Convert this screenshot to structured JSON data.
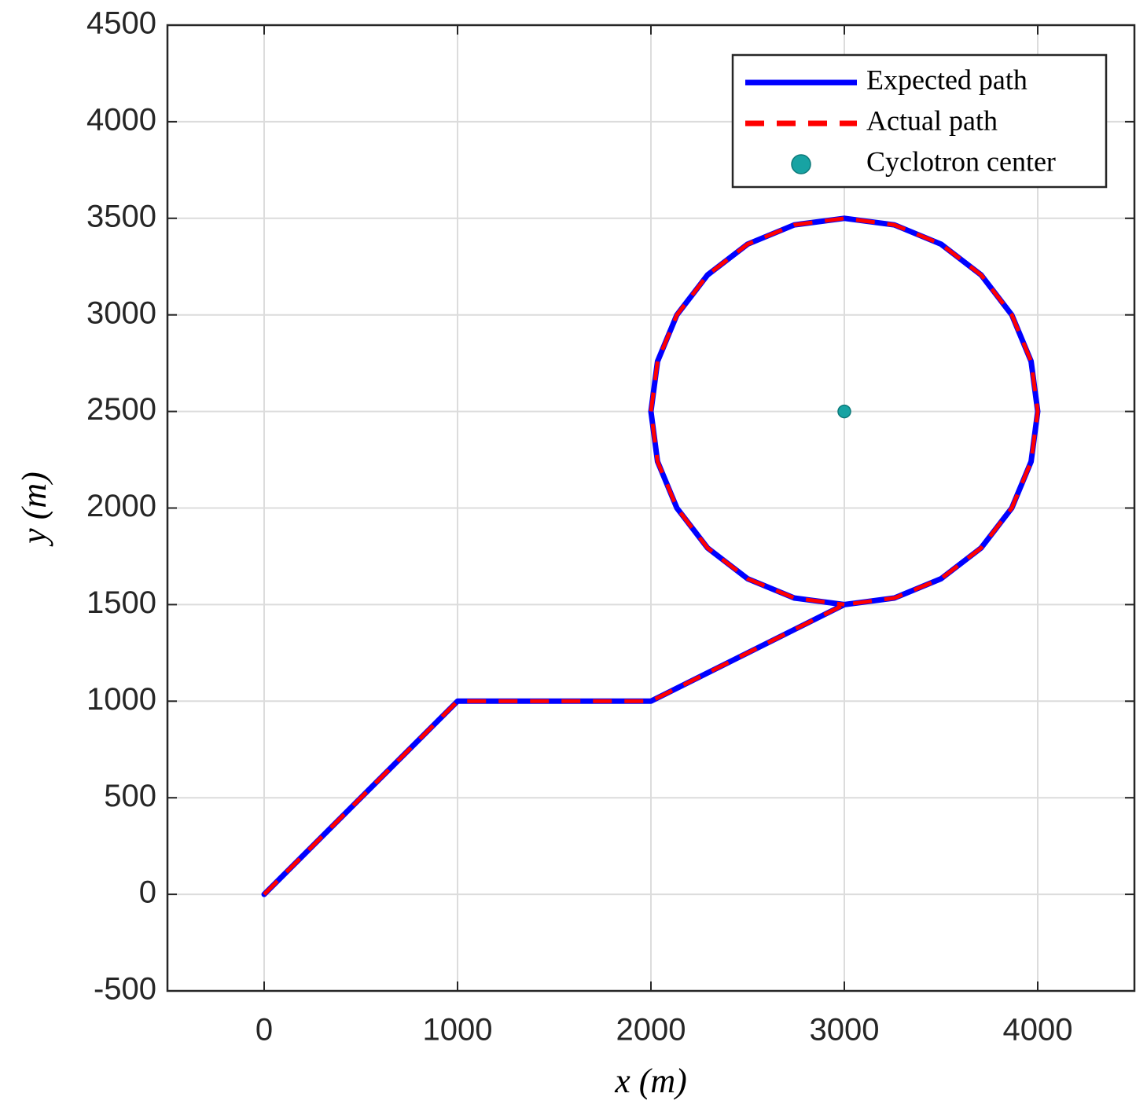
{
  "chart_data": {
    "type": "line",
    "xlabel": "x (m)",
    "ylabel": "y (m)",
    "xlim": [
      -500,
      4500
    ],
    "ylim": [
      -500,
      4500
    ],
    "xticks": [
      0,
      1000,
      2000,
      3000,
      4000
    ],
    "yticks": [
      -500,
      0,
      500,
      1000,
      1500,
      2000,
      2500,
      3000,
      3500,
      4000,
      4500
    ],
    "grid": true,
    "legend": "upper right",
    "series": [
      {
        "name": "Expected path",
        "color": "#0000ff",
        "style": "solid",
        "x": [
          0,
          1000,
          2000,
          3000,
          3259,
          3500,
          3707,
          3866,
          3966,
          4000,
          3966,
          3866,
          3707,
          3500,
          3259,
          3000,
          2741,
          2500,
          2293,
          2134,
          2034,
          2000,
          2034,
          2134,
          2293,
          2500,
          2741,
          3000
        ],
        "values": [
          0,
          1000,
          1000,
          1500,
          1534,
          1634,
          1793,
          2000,
          2241,
          2500,
          2759,
          3000,
          3207,
          3366,
          3466,
          3500,
          3466,
          3366,
          3207,
          3000,
          2759,
          2500,
          2241,
          2000,
          1793,
          1634,
          1534,
          1500
        ]
      },
      {
        "name": "Actual path",
        "color": "#ff0000",
        "style": "dashed",
        "x": [
          0,
          1000,
          2000,
          3000,
          3259,
          3500,
          3707,
          3866,
          3966,
          4000,
          3966,
          3866,
          3707,
          3500,
          3259,
          3000,
          2741,
          2500,
          2293,
          2134,
          2034,
          2000,
          2034,
          2134,
          2293,
          2500,
          2741,
          3000
        ],
        "values": [
          0,
          1000,
          1000,
          1500,
          1534,
          1634,
          1793,
          2000,
          2241,
          2500,
          2759,
          3000,
          3207,
          3366,
          3466,
          3500,
          3466,
          3366,
          3207,
          3000,
          2759,
          2500,
          2241,
          2000,
          1793,
          1634,
          1534,
          1500
        ]
      },
      {
        "name": "Cyclotron center",
        "color": "#17a3a3",
        "type": "scatter",
        "x": [
          3000
        ],
        "values": [
          2500
        ]
      }
    ]
  }
}
